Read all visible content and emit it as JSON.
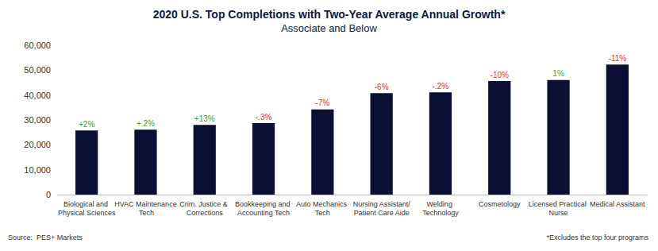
{
  "chart_data": {
    "type": "bar",
    "title": "2020 U.S. Top Completions with Two-Year Average Annual Growth*",
    "subtitle": "Associate and Below",
    "categories": [
      "Biological and Physical Sciences",
      "HVAC Maintenance Tech",
      "Crim. Justice & Corrections",
      "Bookkeeping and Accounting Tech",
      "Auto Mechanics Tech",
      "Nursing Assistant/Patient Care Aide",
      "Welding Technology",
      "Cosmetology",
      "Licensed Practical Nurse",
      "Medical Assistant"
    ],
    "values": [
      25800,
      26100,
      28000,
      28700,
      34200,
      40800,
      41100,
      45600,
      46000,
      52300
    ],
    "color": "#0a0f33",
    "annotations": [
      {
        "text": "+2%",
        "color": "#3a9e3a"
      },
      {
        "text": "+.2%",
        "color": "#3a9e3a"
      },
      {
        "text": "+13%",
        "color": "#3a9e3a"
      },
      {
        "text": "-.3%",
        "color": "#e8302a"
      },
      {
        "text": "-7%",
        "color": "#e8302a"
      },
      {
        "text": "-6%",
        "color": "#e8302a"
      },
      {
        "text": "-.2%",
        "color": "#e8302a"
      },
      {
        "text": "-10%",
        "color": "#e8302a"
      },
      {
        "text": "1%",
        "color": "#3a9e3a"
      },
      {
        "text": "-11%",
        "color": "#e8302a"
      }
    ],
    "ylim": [
      0,
      60000
    ],
    "yticks": [
      0,
      {
        "value": 10000,
        "label": "10,000"
      },
      {
        "value": 20000,
        "label": "20,000"
      },
      {
        "value": 30000,
        "label": "30,000"
      },
      {
        "value": 40000,
        "label": "40,000"
      },
      {
        "value": 50000,
        "label": "50,000"
      },
      {
        "value": 60000,
        "label": "60,000"
      }
    ],
    "grid": false,
    "source": "Source:  PES+ Markets",
    "footnote": "*Excludes the top four programs"
  }
}
